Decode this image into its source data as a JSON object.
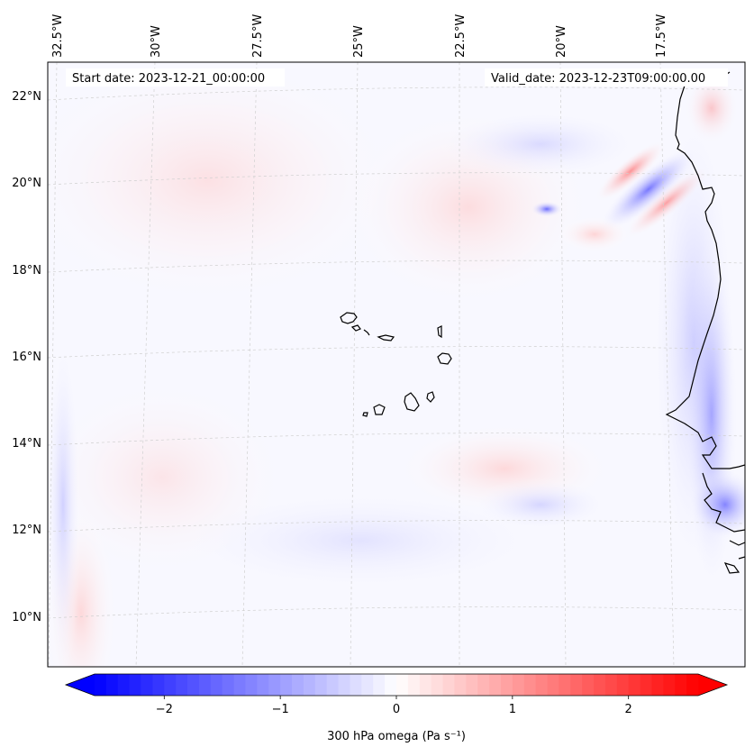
{
  "map": {
    "start_date": "Start date: 2023-12-21_00:00:00",
    "valid_date": "Valid_date: 2023-12-23T09:00:00.00",
    "lon_labels": [
      "32.5°W",
      "30°W",
      "27.5°W",
      "25°W",
      "22.5°W",
      "20°W",
      "17.5°W"
    ],
    "lat_labels": [
      "22°N",
      "20°N",
      "18°N",
      "16°N",
      "14°N",
      "12°N",
      "10°N"
    ]
  },
  "colorbar": {
    "label": "300 hPa omega (Pa s⁻¹)",
    "ticks": [
      "−2",
      "−1",
      "0",
      "1",
      "2"
    ],
    "range": [
      -2.6,
      2.6
    ],
    "cmap": "bwr",
    "colors": {
      "low": "#0000ff",
      "mid": "#ffffff",
      "high": "#ff0000"
    }
  },
  "chart_data": {
    "type": "heatmap",
    "variable": "300 hPa omega",
    "units": "Pa s⁻¹",
    "lon_range": [
      -33.0,
      -16.0
    ],
    "lat_range": [
      9.0,
      22.8
    ],
    "projection": "Lambert conformal",
    "coastline_color": "#000000"
  }
}
